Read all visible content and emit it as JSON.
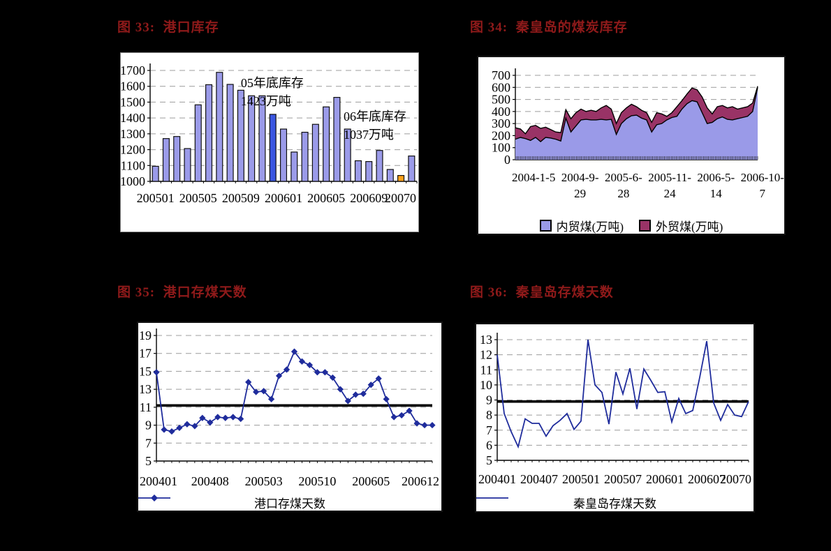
{
  "page": {
    "background": "#000000",
    "title_color": "#8f1a1a"
  },
  "chart_data": [
    {
      "type": "bar",
      "title": "图 33:  港口库存",
      "ylim": [
        1000,
        1700
      ],
      "yticks": [
        1700,
        1600,
        1500,
        1400,
        1300,
        1200,
        1100,
        1000
      ],
      "grid": "dashed",
      "categories": [
        "200501",
        "200502",
        "200503",
        "200504",
        "200505",
        "200506",
        "200507",
        "200508",
        "200509",
        "200510",
        "200511",
        "200512",
        "200601",
        "200602",
        "200603",
        "200604",
        "200605",
        "200606",
        "200607",
        "200608",
        "200609",
        "200610",
        "200611",
        "200612",
        "200701"
      ],
      "values": [
        1095,
        1270,
        1283,
        1207,
        1483,
        1610,
        1688,
        1612,
        1575,
        1540,
        1540,
        1423,
        1330,
        1185,
        1310,
        1360,
        1470,
        1530,
        1330,
        1130,
        1125,
        1195,
        1075,
        1037,
        1160
      ],
      "bar_color": "#9b9be9",
      "bar_border": "#101010",
      "highlights": {
        "11": "#3a56e0",
        "23": "#ffa21c"
      },
      "xticks": [
        {
          "index": 0,
          "label": "200501"
        },
        {
          "index": 4,
          "label": "200505"
        },
        {
          "index": 8,
          "label": "200509"
        },
        {
          "index": 12,
          "label": "200601"
        },
        {
          "index": 16,
          "label": "200605"
        },
        {
          "index": 20,
          "label": "200609"
        },
        {
          "index": 24,
          "label": "20070"
        }
      ],
      "annotations": [
        {
          "lines": [
            "05年底库存",
            "1423万吨"
          ],
          "fx": 0.34,
          "fy": 0.07
        },
        {
          "lines": [
            "06年底库存",
            "1037万吨"
          ],
          "fx": 0.725,
          "fy": 0.37
        }
      ]
    },
    {
      "type": "area",
      "title": "图 34:  秦皇岛的煤炭库存",
      "ylim": [
        0,
        700
      ],
      "yticks": [
        700,
        600,
        500,
        400,
        300,
        200,
        100,
        0
      ],
      "grid": "dashed",
      "series": [
        {
          "name": "内贸煤(万吨)",
          "color": "#9a9ae8",
          "values": [
            170,
            185,
            175,
            160,
            185,
            150,
            185,
            180,
            170,
            155,
            345,
            230,
            280,
            330,
            335,
            330,
            330,
            335,
            330,
            335,
            210,
            300,
            340,
            365,
            370,
            345,
            330,
            230,
            290,
            300,
            330,
            350,
            360,
            420,
            465,
            490,
            480,
            390,
            300,
            310,
            340,
            355,
            335,
            330,
            340,
            350,
            360,
            400,
            600
          ]
        },
        {
          "name": "外贸煤(万吨)",
          "color": "#993366",
          "values": [
            95,
            70,
            40,
            115,
            100,
            110,
            85,
            70,
            60,
            70,
            70,
            110,
            110,
            90,
            65,
            80,
            70,
            95,
            120,
            85,
            90,
            90,
            90,
            95,
            70,
            65,
            60,
            80,
            100,
            80,
            30,
            40,
            80,
            70,
            80,
            105,
            100,
            130,
            130,
            70,
            100,
            95,
            95,
            110,
            80,
            80,
            80,
            70,
            10
          ]
        }
      ],
      "stacked": true,
      "xtick_labels": [
        {
          "line1": "2004-1-5",
          "line2": ""
        },
        {
          "line1": "2004-9-",
          "line2": "29"
        },
        {
          "line1": "2005-6-",
          "line2": "28"
        },
        {
          "line1": "2005-11-",
          "line2": "24"
        },
        {
          "line1": "2006-5-",
          "line2": "14"
        },
        {
          "line1": "2006-10-",
          "line2": "7"
        }
      ],
      "legend_position": "bottom"
    },
    {
      "type": "line",
      "marker": "diamond",
      "title": "图 35:  港口存煤天数",
      "ylim": [
        5,
        19
      ],
      "yticks": [
        19,
        17,
        15,
        13,
        11,
        9,
        7,
        5
      ],
      "grid": "dashed",
      "ref_line": 11.2,
      "color": "#1f2c9c",
      "legend": "港口存煤天数",
      "categories": [
        "200401",
        "200402",
        "200403",
        "200404",
        "200405",
        "200406",
        "200407",
        "200408",
        "200409",
        "200410",
        "200411",
        "200412",
        "200501",
        "200502",
        "200503",
        "200504",
        "200505",
        "200506",
        "200507",
        "200508",
        "200509",
        "200510",
        "200511",
        "200512",
        "200601",
        "200602",
        "200603",
        "200604",
        "200605",
        "200606",
        "200607",
        "200608",
        "200609",
        "200610",
        "200611",
        "200612",
        "200701"
      ],
      "values": [
        14.9,
        8.5,
        8.3,
        8.7,
        9.1,
        8.9,
        9.8,
        9.3,
        9.9,
        9.8,
        9.9,
        9.7,
        13.8,
        12.7,
        12.8,
        11.9,
        14.5,
        15.2,
        17.2,
        16.1,
        15.7,
        14.9,
        14.9,
        14.3,
        13.0,
        11.7,
        12.4,
        12.5,
        13.5,
        14.2,
        11.9,
        9.9,
        10.1,
        10.6,
        9.2,
        9.0,
        9.0
      ],
      "xticks": [
        {
          "index": 0,
          "label": "200401"
        },
        {
          "index": 7,
          "label": "200408"
        },
        {
          "index": 14,
          "label": "200503"
        },
        {
          "index": 21,
          "label": "200510"
        },
        {
          "index": 28,
          "label": "200605"
        },
        {
          "index": 35,
          "label": "200612"
        }
      ]
    },
    {
      "type": "line",
      "marker": "none",
      "title": "图 36:  秦皇岛存煤天数",
      "ylim": [
        5,
        13
      ],
      "yticks": [
        13,
        12,
        11,
        10,
        9,
        8,
        7,
        6,
        5
      ],
      "grid": "dashed",
      "ref_line": 8.9,
      "color": "#1f2c9c",
      "legend": "秦皇岛存煤天数",
      "categories": [
        "200401",
        "200402",
        "200403",
        "200404",
        "200405",
        "200406",
        "200407",
        "200408",
        "200409",
        "200410",
        "200411",
        "200412",
        "200501",
        "200502",
        "200503",
        "200504",
        "200505",
        "200506",
        "200507",
        "200508",
        "200509",
        "200510",
        "200511",
        "200512",
        "200601",
        "200602",
        "200603",
        "200604",
        "200605",
        "200606",
        "200607",
        "200608",
        "200609",
        "200610",
        "200611",
        "200612",
        "200701"
      ],
      "values": [
        12.0,
        8.1,
        6.9,
        5.9,
        7.75,
        7.45,
        7.45,
        6.6,
        7.3,
        7.65,
        8.1,
        7.05,
        7.6,
        13.0,
        10.0,
        9.5,
        7.4,
        10.85,
        9.4,
        11.1,
        8.4,
        11.05,
        10.3,
        9.5,
        9.55,
        7.55,
        9.1,
        8.1,
        8.3,
        10.5,
        12.9,
        8.8,
        7.65,
        8.7,
        8.0,
        7.9,
        8.9
      ],
      "xticks": [
        {
          "index": 0,
          "label": "200401"
        },
        {
          "index": 6,
          "label": "200407"
        },
        {
          "index": 12,
          "label": "200501"
        },
        {
          "index": 18,
          "label": "200507"
        },
        {
          "index": 24,
          "label": "200601"
        },
        {
          "index": 30,
          "label": "200607"
        },
        {
          "index": 36,
          "label": "20070"
        }
      ]
    }
  ]
}
